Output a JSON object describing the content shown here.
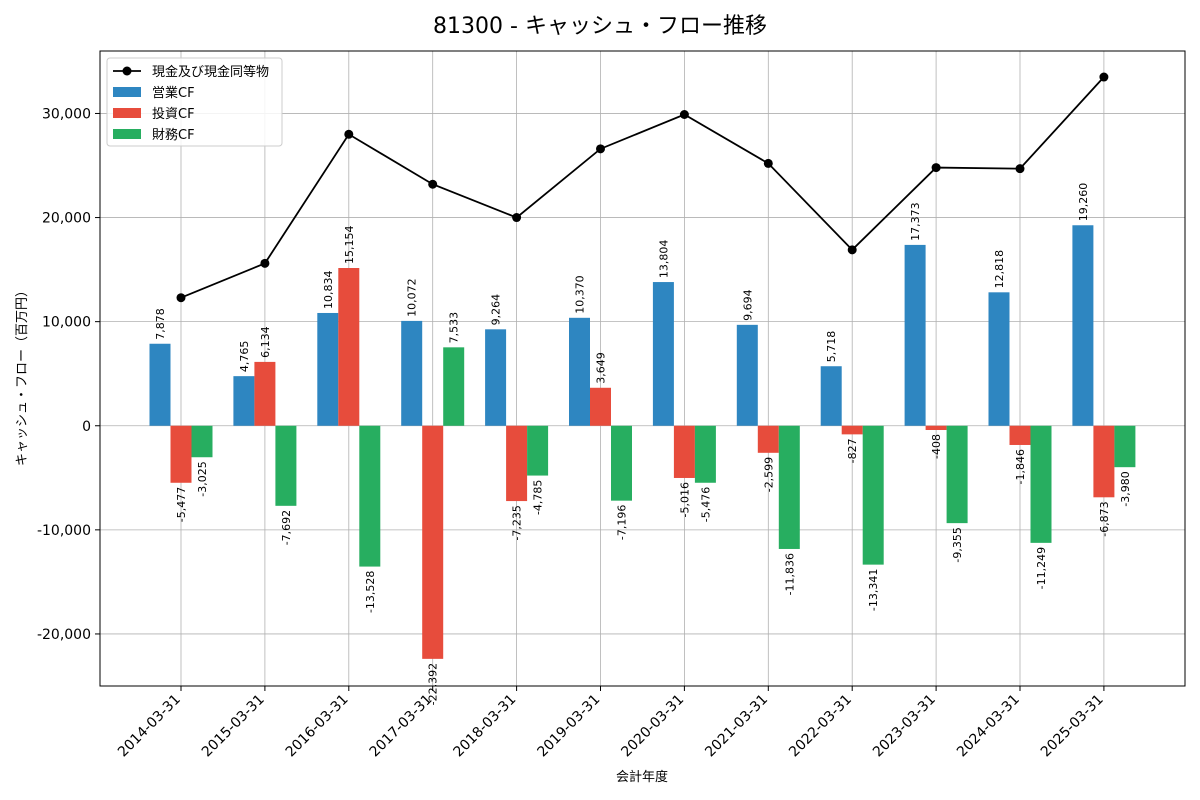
{
  "chart_data": {
    "type": "bar",
    "title": "81300 - キャッシュ・フロー推移",
    "xlabel": "会計年度",
    "ylabel": "キャッシュ・フロー（百万円）",
    "ylim": [
      -25000,
      36000
    ],
    "yticks": [
      -20000,
      -10000,
      0,
      10000,
      20000,
      30000
    ],
    "ytick_labels": [
      "-20,000",
      "-10,000",
      "0",
      "10,000",
      "20,000",
      "30,000"
    ],
    "grid": true,
    "legend_position": "top-left",
    "categories": [
      "2014-03-31",
      "2015-03-31",
      "2016-03-31",
      "2017-03-31",
      "2018-03-31",
      "2019-03-31",
      "2020-03-31",
      "2021-03-31",
      "2022-03-31",
      "2023-03-31",
      "2024-03-31",
      "2025-03-31"
    ],
    "series": [
      {
        "name": "営業CF",
        "kind": "bar",
        "color": "#2e86c1",
        "values": [
          7878,
          4765,
          10834,
          10072,
          9264,
          10370,
          13804,
          9694,
          5718,
          17373,
          12818,
          19260
        ],
        "labels": [
          "7,878",
          "4,765",
          "10,834",
          "10,072",
          "9,264",
          "10,370",
          "13,804",
          "9,694",
          "5,718",
          "17,373",
          "12,818",
          "19,260"
        ]
      },
      {
        "name": "投資CF",
        "kind": "bar",
        "color": "#e74c3c",
        "values": [
          -5477,
          6134,
          15154,
          -22392,
          -7235,
          3649,
          -5016,
          -2599,
          -827,
          -408,
          -1846,
          -6873
        ],
        "labels": [
          "-5,477",
          "6,134",
          "15,154",
          "-22,392",
          "-7,235",
          "3,649",
          "-5,016",
          "-2,599",
          "-827",
          "-408",
          "-1,846",
          "-6,873"
        ]
      },
      {
        "name": "財務CF",
        "kind": "bar",
        "color": "#27ae60",
        "values": [
          -3025,
          -7692,
          -13528,
          7533,
          -4785,
          -7196,
          -5476,
          -11836,
          -13341,
          -9355,
          -11249,
          -3980
        ],
        "labels": [
          "-3,025",
          "-7,692",
          "-13,528",
          "7,533",
          "-4,785",
          "-7,196",
          "-5,476",
          "-11,836",
          "-13,341",
          "-9,355",
          "-11,249",
          "-3,980"
        ]
      },
      {
        "name": "現金及び現金同等物",
        "kind": "line",
        "color": "#000000",
        "values": [
          12300,
          15600,
          28000,
          23200,
          20000,
          26600,
          29900,
          25200,
          16900,
          24800,
          24700,
          33500
        ]
      }
    ]
  }
}
